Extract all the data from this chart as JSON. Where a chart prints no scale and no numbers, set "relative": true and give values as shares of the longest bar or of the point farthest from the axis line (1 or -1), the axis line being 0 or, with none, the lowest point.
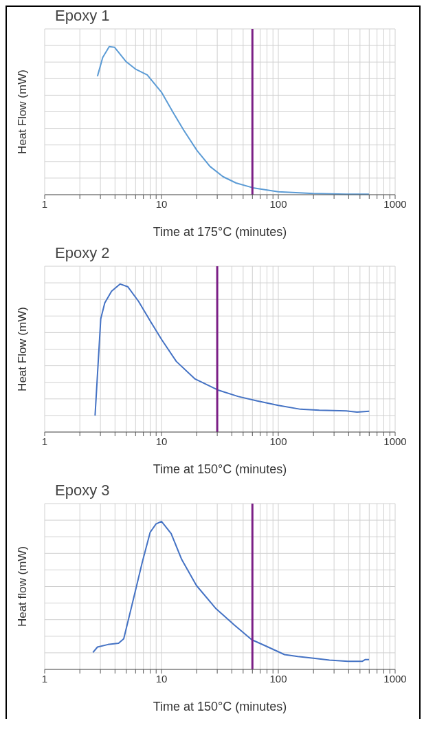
{
  "chart_data": [
    {
      "type": "line",
      "title": "Epoxy 1",
      "xlabel": "Time at 175°C  (minutes)",
      "ylabel": "Heat Flow (mW)",
      "relative": true,
      "log": "x",
      "grid": true,
      "tick_labels": "x",
      "xlim": [
        1,
        1000
      ],
      "xticks": [
        1,
        {
          "value": 2,
          "label": null
        },
        {
          "value": 3,
          "label": null
        },
        {
          "value": 4,
          "label": null
        },
        {
          "value": 5,
          "label": null
        },
        {
          "value": 6,
          "label": null
        },
        {
          "value": 7,
          "label": null
        },
        {
          "value": 8,
          "label": null
        },
        {
          "value": 9,
          "label": null
        },
        10,
        {
          "value": 20,
          "label": null
        },
        {
          "value": 30,
          "label": null
        },
        {
          "value": 40,
          "label": null
        },
        {
          "value": 50,
          "label": null
        },
        {
          "value": 60,
          "label": null
        },
        {
          "value": 70,
          "label": null
        },
        {
          "value": 80,
          "label": null
        },
        {
          "value": 90,
          "label": null
        },
        100,
        {
          "value": 200,
          "label": null
        },
        {
          "value": 300,
          "label": null
        },
        {
          "value": 400,
          "label": null
        },
        {
          "value": 500,
          "label": null
        },
        {
          "value": 600,
          "label": null
        },
        {
          "value": 700,
          "label": null
        },
        {
          "value": 800,
          "label": null
        },
        {
          "value": 900,
          "label": null
        },
        1000
      ],
      "x": [
        2.83,
        3.14,
        3.57,
        3.96,
        4.99,
        5.98,
        7.55,
        10,
        12.6,
        15.5,
        20.1,
        26,
        33.6,
        43.5,
        60.4,
        100,
        199,
        379,
        597
      ],
      "series": [
        {
          "color": "#5b9bd5",
          "values": [
            0.8,
            0.927,
            1,
            0.996,
            0.898,
            0.849,
            0.809,
            0.692,
            0.554,
            0.436,
            0.299,
            0.191,
            0.122,
            0.079,
            0.047,
            0.02,
            0.008,
            0.004,
            0.004
          ]
        }
      ],
      "ref_lines": [
        {
          "axis": "x",
          "value": 60,
          "color": "#7b1f86"
        }
      ]
    },
    {
      "type": "line",
      "title": "Epoxy 2",
      "xlabel": "Time at 150°C (minutes)",
      "ylabel": "Heat Flow (mW)",
      "relative": true,
      "log": "x",
      "grid": true,
      "tick_labels": "x",
      "xlim": [
        1,
        1000
      ],
      "xticks": [
        1,
        {
          "value": 2,
          "label": null
        },
        {
          "value": 3,
          "label": null
        },
        {
          "value": 4,
          "label": null
        },
        {
          "value": 5,
          "label": null
        },
        {
          "value": 6,
          "label": null
        },
        {
          "value": 7,
          "label": null
        },
        {
          "value": 8,
          "label": null
        },
        {
          "value": 9,
          "label": null
        },
        10,
        {
          "value": 20,
          "label": null
        },
        {
          "value": 30,
          "label": null
        },
        {
          "value": 40,
          "label": null
        },
        {
          "value": 50,
          "label": null
        },
        {
          "value": 60,
          "label": null
        },
        {
          "value": 70,
          "label": null
        },
        {
          "value": 80,
          "label": null
        },
        {
          "value": 90,
          "label": null
        },
        100,
        {
          "value": 200,
          "label": null
        },
        {
          "value": 300,
          "label": null
        },
        {
          "value": 400,
          "label": null
        },
        {
          "value": 500,
          "label": null
        },
        {
          "value": 600,
          "label": null
        },
        {
          "value": 700,
          "label": null
        },
        {
          "value": 800,
          "label": null
        },
        {
          "value": 900,
          "label": null
        },
        1000
      ],
      "x": [
        2.7,
        2.87,
        3.02,
        3.27,
        3.74,
        4.43,
        5.14,
        6.36,
        8.09,
        10,
        13.4,
        19.4,
        30.2,
        45.5,
        66,
        100,
        155,
        224,
        382,
        472,
        600
      ],
      "series": [
        {
          "color": "#4472c4",
          "values": [
            0.111,
            0.467,
            0.764,
            0.873,
            0.952,
            1,
            0.982,
            0.883,
            0.745,
            0.626,
            0.477,
            0.358,
            0.285,
            0.24,
            0.21,
            0.18,
            0.154,
            0.147,
            0.143,
            0.135,
            0.141
          ]
        }
      ],
      "ref_lines": [
        {
          "axis": "x",
          "value": 30,
          "color": "#7b1f86"
        }
      ]
    },
    {
      "type": "line",
      "title": "Epoxy 3",
      "xlabel": "Time at 150°C (minutes)",
      "ylabel": "Heat flow (mW)",
      "relative": true,
      "log": "x",
      "grid": true,
      "tick_labels": "x",
      "xlim": [
        1,
        1000
      ],
      "xticks": [
        1,
        {
          "value": 2,
          "label": null
        },
        {
          "value": 3,
          "label": null
        },
        {
          "value": 4,
          "label": null
        },
        {
          "value": 5,
          "label": null
        },
        {
          "value": 6,
          "label": null
        },
        {
          "value": 7,
          "label": null
        },
        {
          "value": 8,
          "label": null
        },
        {
          "value": 9,
          "label": null
        },
        10,
        {
          "value": 20,
          "label": null
        },
        {
          "value": 30,
          "label": null
        },
        {
          "value": 40,
          "label": null
        },
        {
          "value": 50,
          "label": null
        },
        {
          "value": 60,
          "label": null
        },
        {
          "value": 70,
          "label": null
        },
        {
          "value": 80,
          "label": null
        },
        {
          "value": 90,
          "label": null
        },
        100,
        {
          "value": 200,
          "label": null
        },
        {
          "value": 300,
          "label": null
        },
        {
          "value": 400,
          "label": null
        },
        {
          "value": 500,
          "label": null
        },
        {
          "value": 600,
          "label": null
        },
        {
          "value": 700,
          "label": null
        },
        {
          "value": 800,
          "label": null
        },
        {
          "value": 900,
          "label": null
        },
        1000
      ],
      "x": [
        2.59,
        2.83,
        3.48,
        4.29,
        4.75,
        5.56,
        6.84,
        8.0,
        8.97,
        10,
        12.1,
        14.9,
        19.9,
        29.3,
        42.2,
        59.1,
        78.7,
        113,
        147,
        206,
        274,
        394,
        525,
        553,
        598
      ],
      "series": [
        {
          "color": "#4472c4",
          "values": [
            0.114,
            0.151,
            0.168,
            0.177,
            0.207,
            0.428,
            0.723,
            0.926,
            0.982,
            1,
            0.917,
            0.742,
            0.567,
            0.41,
            0.299,
            0.201,
            0.157,
            0.1,
            0.087,
            0.074,
            0.063,
            0.055,
            0.055,
            0.066,
            0.066
          ]
        }
      ],
      "ref_lines": [
        {
          "axis": "x",
          "value": 60,
          "color": "#7b1f86"
        }
      ]
    }
  ]
}
